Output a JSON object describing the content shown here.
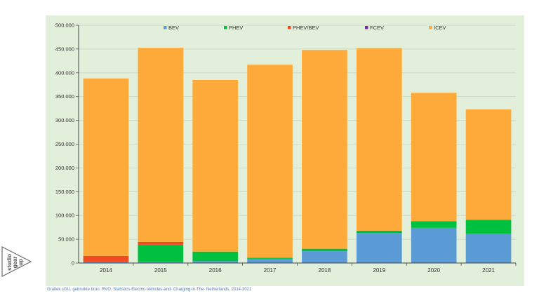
{
  "chart_data": {
    "type": "bar",
    "stacked": true,
    "categories": [
      "2014",
      "2015",
      "2016",
      "2017",
      "2018",
      "2019",
      "2020",
      "2021"
    ],
    "series": [
      {
        "name": "BEV",
        "color": "#5b9bd5",
        "values": [
          2000,
          2500,
          4000,
          9000,
          25000,
          63000,
          74000,
          62000
        ]
      },
      {
        "name": "PHEV",
        "color": "#00c040",
        "values": [
          0,
          36000,
          20000,
          2000,
          5000,
          5000,
          14000,
          29000
        ]
      },
      {
        "name": "PHEV/BEV",
        "color": "#f04b23",
        "values": [
          13000,
          6000,
          0,
          0,
          0,
          0,
          0,
          0
        ]
      },
      {
        "name": "FCEV",
        "color": "#7030a0",
        "values": [
          0,
          0,
          0,
          0,
          0,
          0,
          0,
          0
        ]
      },
      {
        "name": "ICEV",
        "color": "#fdaa3a",
        "values": [
          373000,
          408000,
          361000,
          406000,
          418000,
          384000,
          270000,
          232000
        ]
      }
    ],
    "ylim": [
      0,
      500000
    ],
    "yticks": [
      0,
      50000,
      100000,
      150000,
      200000,
      250000,
      300000,
      350000,
      400000,
      450000,
      500000
    ],
    "ytick_labels": [
      "0",
      "50.000",
      "100.000",
      "150.000",
      "200.000",
      "250.000",
      "300.000",
      "350.000",
      "400.000",
      "450.000",
      "500.000"
    ],
    "grid": true,
    "legend_position": "top"
  },
  "source_note": "Grafiek sGU, gebruikte bron: RVO, Statistics-Electric-Vehicles-and- Charging-in-The- Netherlands, 2014-2021",
  "logo": {
    "text": "studio gear up",
    "lines": [
      "studio",
      "gear",
      "up"
    ]
  }
}
